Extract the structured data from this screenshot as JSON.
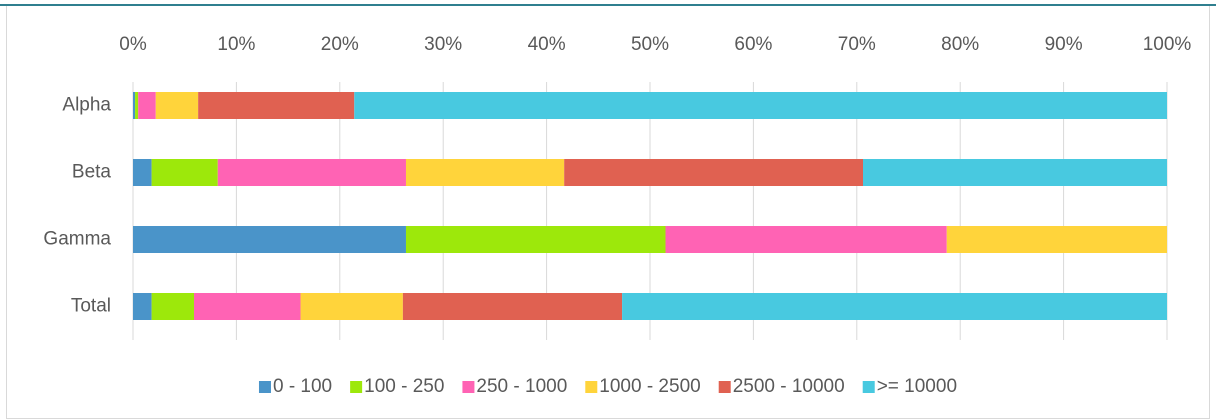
{
  "chart_data": {
    "type": "stacked_bar_horizontal",
    "categories": [
      "Alpha",
      "Beta",
      "Gamma",
      "Total"
    ],
    "series": [
      {
        "name": "0 - 100",
        "color": "#4a94c9",
        "values": [
          0.2,
          1.8,
          26.4,
          1.8
        ]
      },
      {
        "name": "100 - 250",
        "color": "#9de80b",
        "values": [
          0.3,
          6.4,
          25.1,
          4.1
        ]
      },
      {
        "name": "250 - 1000",
        "color": "#ff63b4",
        "values": [
          1.7,
          18.2,
          27.2,
          10.3
        ]
      },
      {
        "name": "1000 - 2500",
        "color": "#ffd43b",
        "values": [
          4.1,
          15.3,
          21.3,
          9.9
        ]
      },
      {
        "name": "2500 - 10000",
        "color": "#e06151",
        "values": [
          15.1,
          28.9,
          0,
          21.2
        ]
      },
      {
        "name": ">= 10000",
        "color": "#48c9e0",
        "values": [
          78.6,
          29.4,
          0,
          52.7
        ]
      }
    ],
    "xlim": [
      0,
      100
    ],
    "xticks": [
      {
        "value": 0,
        "label": "0%"
      },
      {
        "value": 10,
        "label": "10%"
      },
      {
        "value": 20,
        "label": "20%"
      },
      {
        "value": 30,
        "label": "30%"
      },
      {
        "value": 40,
        "label": "40%"
      },
      {
        "value": 50,
        "label": "50%"
      },
      {
        "value": 60,
        "label": "60%"
      },
      {
        "value": 70,
        "label": "70%"
      },
      {
        "value": 80,
        "label": "80%"
      },
      {
        "value": 90,
        "label": "90%"
      },
      {
        "value": 100,
        "label": "100%"
      }
    ],
    "grid": true,
    "legend": "bottom"
  }
}
